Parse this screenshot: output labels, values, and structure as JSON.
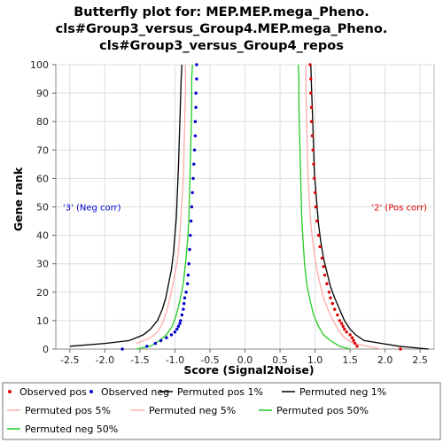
{
  "chart_data": {
    "type": "line",
    "title_lines": [
      "Butterfly plot for: MEP.MEP.mega_Pheno.",
      "cls#Group3_versus_Group4.MEP.mega_Pheno.",
      "cls#Group3_versus_Group4_repos"
    ],
    "xlabel": "Score (Signal2Noise)",
    "ylabel": "Gene rank",
    "xlim": [
      -2.7,
      2.7
    ],
    "ylim": [
      0,
      100
    ],
    "x_ticks": [
      "-2.5",
      "-2.0",
      "-1.5",
      "-1.0",
      "-0.5",
      "0.0",
      "0.5",
      "1.0",
      "1.5",
      "2.0",
      "2.5"
    ],
    "y_ticks": [
      "0",
      "10",
      "20",
      "30",
      "40",
      "50",
      "60",
      "70",
      "80",
      "90",
      "100"
    ],
    "grid": true,
    "legend_position": "bottom",
    "annotations": {
      "neg": {
        "text": "'3' (Neg corr)",
        "color": "#0000cc",
        "x": -2.6,
        "y": 50
      },
      "pos": {
        "text": "'2' (Pos corr)",
        "color": "#dd0000",
        "x": 2.6,
        "y": 50
      }
    },
    "series": [
      {
        "name": "Observed pos",
        "style": "dots",
        "color": "#dd0000",
        "points": [
          [
            2.22,
            0
          ],
          [
            1.6,
            1
          ],
          [
            1.57,
            2
          ],
          [
            1.55,
            3
          ],
          [
            1.53,
            4
          ],
          [
            1.5,
            5
          ],
          [
            1.45,
            6
          ],
          [
            1.42,
            7
          ],
          [
            1.4,
            8
          ],
          [
            1.38,
            9
          ],
          [
            1.35,
            10
          ],
          [
            1.32,
            12
          ],
          [
            1.28,
            14
          ],
          [
            1.25,
            16
          ],
          [
            1.22,
            18
          ],
          [
            1.2,
            20
          ],
          [
            1.17,
            23
          ],
          [
            1.14,
            26
          ],
          [
            1.12,
            29
          ],
          [
            1.1,
            32
          ],
          [
            1.07,
            36
          ],
          [
            1.05,
            40
          ],
          [
            1.03,
            45
          ],
          [
            1.01,
            50
          ],
          [
            1.0,
            55
          ],
          [
            0.99,
            60
          ],
          [
            0.98,
            65
          ],
          [
            0.97,
            70
          ],
          [
            0.96,
            75
          ],
          [
            0.95,
            80
          ],
          [
            0.95,
            85
          ],
          [
            0.94,
            90
          ],
          [
            0.94,
            95
          ],
          [
            0.93,
            100
          ]
        ]
      },
      {
        "name": "Observed neg",
        "style": "dots",
        "color": "#0000cc",
        "points": [
          [
            -1.75,
            0
          ],
          [
            -1.4,
            1
          ],
          [
            -1.28,
            2
          ],
          [
            -1.2,
            3
          ],
          [
            -1.12,
            4
          ],
          [
            -1.05,
            5
          ],
          [
            -1.0,
            6
          ],
          [
            -0.97,
            7
          ],
          [
            -0.95,
            8
          ],
          [
            -0.93,
            9
          ],
          [
            -0.92,
            10
          ],
          [
            -0.9,
            12
          ],
          [
            -0.88,
            14
          ],
          [
            -0.87,
            16
          ],
          [
            -0.86,
            18
          ],
          [
            -0.84,
            20
          ],
          [
            -0.82,
            23
          ],
          [
            -0.81,
            26
          ],
          [
            -0.8,
            30
          ],
          [
            -0.79,
            35
          ],
          [
            -0.78,
            40
          ],
          [
            -0.77,
            45
          ],
          [
            -0.76,
            50
          ],
          [
            -0.75,
            55
          ],
          [
            -0.74,
            60
          ],
          [
            -0.73,
            65
          ],
          [
            -0.72,
            70
          ],
          [
            -0.71,
            75
          ],
          [
            -0.71,
            80
          ],
          [
            -0.7,
            85
          ],
          [
            -0.7,
            90
          ],
          [
            -0.69,
            95
          ],
          [
            -0.69,
            100
          ]
        ]
      },
      {
        "name": "Permuted pos 1%",
        "style": "line",
        "color": "#000000",
        "points": [
          [
            2.62,
            0
          ],
          [
            2.2,
            1
          ],
          [
            1.95,
            2
          ],
          [
            1.7,
            3
          ],
          [
            1.58,
            5
          ],
          [
            1.5,
            7
          ],
          [
            1.42,
            10
          ],
          [
            1.35,
            14
          ],
          [
            1.28,
            18
          ],
          [
            1.22,
            22
          ],
          [
            1.17,
            27
          ],
          [
            1.12,
            32
          ],
          [
            1.08,
            38
          ],
          [
            1.05,
            44
          ],
          [
            1.03,
            50
          ],
          [
            1.01,
            56
          ],
          [
            0.99,
            62
          ],
          [
            0.98,
            70
          ],
          [
            0.97,
            78
          ],
          [
            0.96,
            85
          ],
          [
            0.95,
            92
          ],
          [
            0.94,
            100
          ]
        ]
      },
      {
        "name": "Permuted neg 1%",
        "style": "line",
        "color": "#000000",
        "points": [
          [
            -2.5,
            1
          ],
          [
            -2.0,
            2
          ],
          [
            -1.65,
            3
          ],
          [
            -1.45,
            5
          ],
          [
            -1.35,
            7
          ],
          [
            -1.25,
            10
          ],
          [
            -1.18,
            14
          ],
          [
            -1.13,
            18
          ],
          [
            -1.09,
            23
          ],
          [
            -1.05,
            28
          ],
          [
            -1.02,
            34
          ],
          [
            -1.0,
            40
          ],
          [
            -0.98,
            46
          ],
          [
            -0.97,
            52
          ],
          [
            -0.96,
            58
          ],
          [
            -0.95,
            64
          ],
          [
            -0.94,
            72
          ],
          [
            -0.93,
            80
          ],
          [
            -0.92,
            88
          ],
          [
            -0.91,
            95
          ],
          [
            -0.9,
            100
          ]
        ]
      },
      {
        "name": "Permuted pos 5%",
        "style": "line",
        "color": "#ffaaaa",
        "points": [
          [
            1.95,
            0
          ],
          [
            1.55,
            2
          ],
          [
            1.42,
            4
          ],
          [
            1.35,
            6
          ],
          [
            1.28,
            9
          ],
          [
            1.2,
            13
          ],
          [
            1.12,
            18
          ],
          [
            1.06,
            24
          ],
          [
            1.01,
            30
          ],
          [
            0.97,
            37
          ],
          [
            0.94,
            44
          ],
          [
            0.92,
            52
          ],
          [
            0.9,
            60
          ],
          [
            0.89,
            70
          ],
          [
            0.88,
            80
          ],
          [
            0.87,
            90
          ],
          [
            0.87,
            100
          ]
        ]
      },
      {
        "name": "Permuted neg 5%",
        "style": "line",
        "color": "#ffaaaa",
        "points": [
          [
            -1.55,
            2
          ],
          [
            -1.35,
            4
          ],
          [
            -1.25,
            6
          ],
          [
            -1.18,
            9
          ],
          [
            -1.12,
            13
          ],
          [
            -1.07,
            18
          ],
          [
            -1.02,
            24
          ],
          [
            -0.97,
            30
          ],
          [
            -0.94,
            37
          ],
          [
            -0.92,
            44
          ],
          [
            -0.9,
            52
          ],
          [
            -0.88,
            60
          ],
          [
            -0.87,
            70
          ],
          [
            -0.86,
            80
          ],
          [
            -0.85,
            90
          ],
          [
            -0.85,
            100
          ]
        ]
      },
      {
        "name": "Permuted pos 50%",
        "style": "line",
        "color": "#22cc22",
        "points": [
          [
            1.5,
            0
          ],
          [
            1.35,
            1
          ],
          [
            1.22,
            3
          ],
          [
            1.12,
            5
          ],
          [
            1.05,
            8
          ],
          [
            0.98,
            12
          ],
          [
            0.93,
            17
          ],
          [
            0.88,
            23
          ],
          [
            0.85,
            30
          ],
          [
            0.83,
            38
          ],
          [
            0.81,
            46
          ],
          [
            0.8,
            55
          ],
          [
            0.79,
            65
          ],
          [
            0.78,
            75
          ],
          [
            0.77,
            85
          ],
          [
            0.77,
            95
          ],
          [
            0.76,
            100
          ]
        ]
      },
      {
        "name": "Permuted neg 50%",
        "style": "line",
        "color": "#22cc22",
        "points": [
          [
            -1.55,
            0
          ],
          [
            -1.35,
            1
          ],
          [
            -1.22,
            3
          ],
          [
            -1.12,
            5
          ],
          [
            -1.04,
            8
          ],
          [
            -0.98,
            12
          ],
          [
            -0.93,
            17
          ],
          [
            -0.88,
            23
          ],
          [
            -0.85,
            30
          ],
          [
            -0.82,
            38
          ],
          [
            -0.8,
            46
          ],
          [
            -0.79,
            55
          ],
          [
            -0.78,
            65
          ],
          [
            -0.77,
            75
          ],
          [
            -0.76,
            85
          ],
          [
            -0.76,
            95
          ],
          [
            -0.75,
            100
          ]
        ]
      }
    ]
  }
}
